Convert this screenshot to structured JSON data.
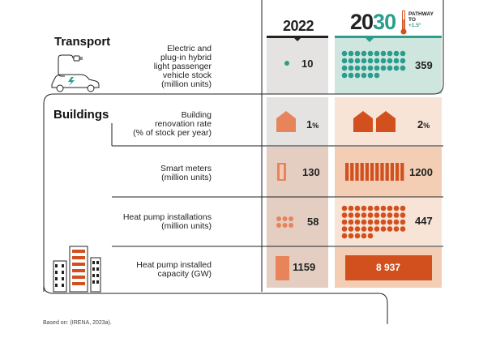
{
  "header": {
    "year_2022": "2022",
    "year_2030_prefix": "20",
    "year_2030_suffix": "30",
    "pathway_line1": "PATHWAY",
    "pathway_line2": "TO",
    "pathway_line3": "+1.5°"
  },
  "colors": {
    "teal": "#2a9d8f",
    "teal_bg": "#cfe6df",
    "grey_bg": "#e4e3e1",
    "orange": "#d2501e",
    "orange_light": "#e8845a",
    "peach_bg_dark": "#f3cdb4",
    "peach_bg_light": "#f8e4d6",
    "tan_bg": "#e4cec2"
  },
  "sectors": {
    "transport": "Transport",
    "buildings": "Buildings"
  },
  "chart_data": {
    "type": "table",
    "columns": [
      "2022",
      "2030"
    ],
    "rows": [
      {
        "sector": "Transport",
        "indicator": "Electric and\nplug-in hybrid\nlight passenger\nvehicle stock\n(million units)",
        "v2022": "10",
        "v2030": "359"
      },
      {
        "sector": "Buildings",
        "indicator": "Building\nrenovation rate\n(% of stock per year)",
        "v2022": "1",
        "v2030": "2",
        "unit": "%"
      },
      {
        "sector": "Buildings",
        "indicator": "Smart meters\n(million units)",
        "v2022": "130",
        "v2030": "1200"
      },
      {
        "sector": "Buildings",
        "indicator": "Heat pump installations\n(million units)",
        "v2022": "58",
        "v2030": "447"
      },
      {
        "sector": "Buildings",
        "indicator": "Heat pump installed\ncapacity (GW)",
        "v2022": "1159",
        "v2030": "8 937"
      }
    ]
  },
  "source": "Based on: (IRENA, 2023a)."
}
